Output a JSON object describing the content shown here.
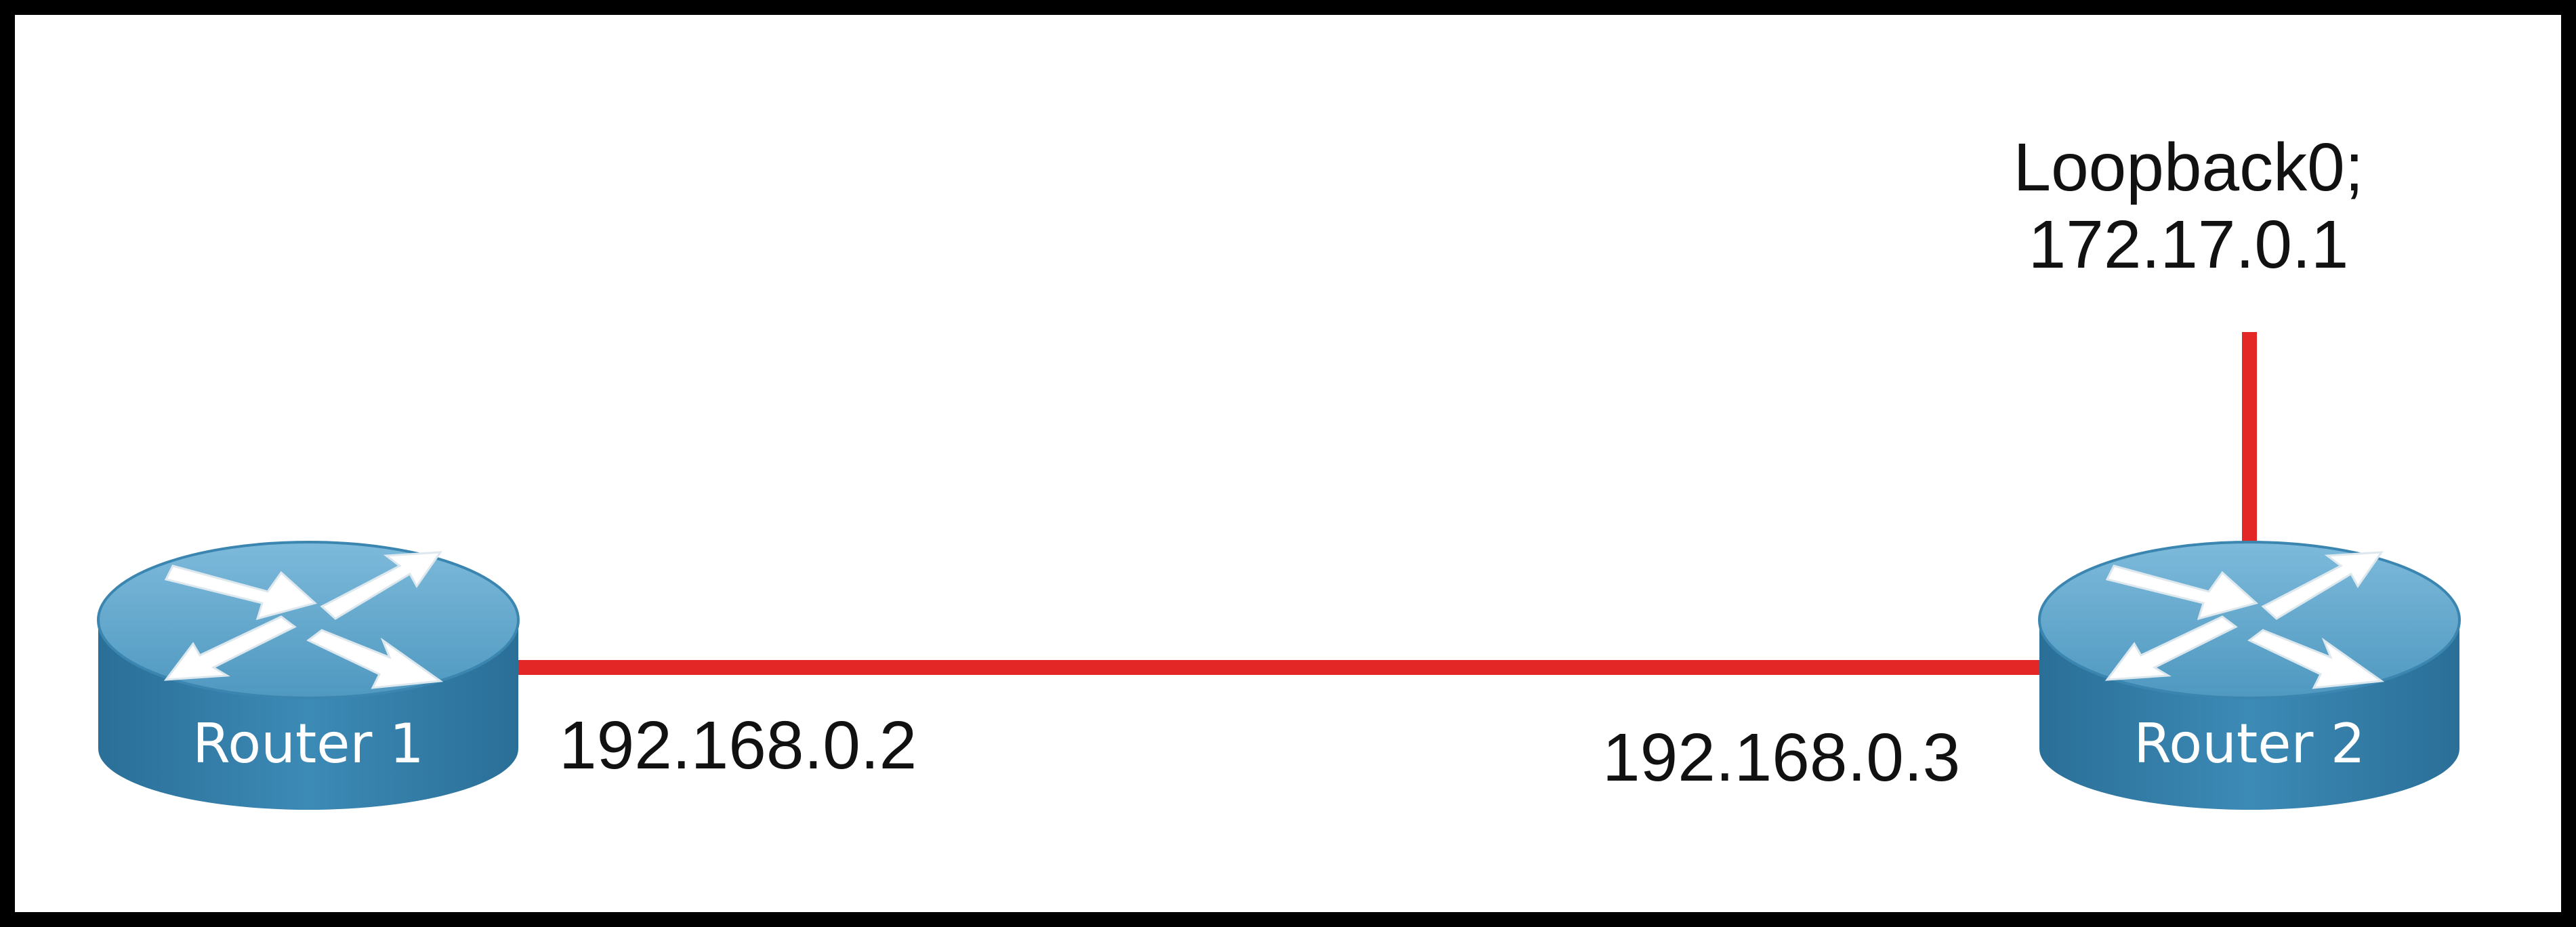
{
  "diagram": {
    "routers": [
      {
        "name": "Router 1",
        "icon": "router-icon"
      },
      {
        "name": "Router 2",
        "icon": "router-icon"
      }
    ],
    "links": [
      {
        "from": "Router 1",
        "to": "Router 2",
        "from_ip": "192.168.0.2",
        "to_ip": "192.168.0.3"
      }
    ],
    "loopback": {
      "router": "Router 2",
      "label_line1": "Loopback0;",
      "label_line2": "172.17.0.1"
    },
    "colors": {
      "link": "#e32626",
      "router_top": "#5ea5c9",
      "router_side": "#2f7ca8",
      "frame": "#000000"
    }
  }
}
